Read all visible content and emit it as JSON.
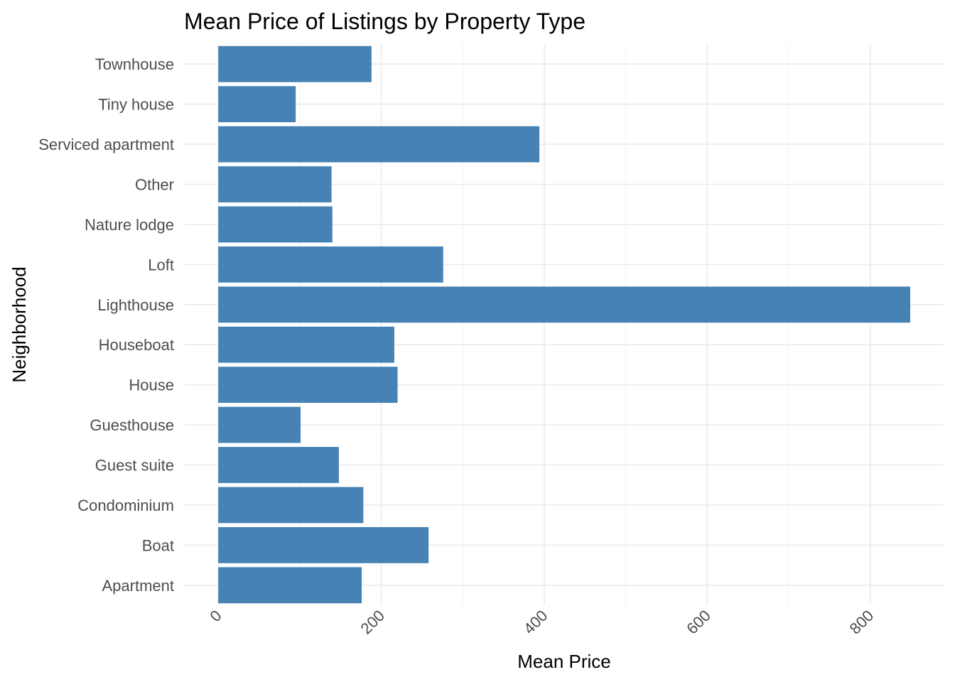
{
  "chart_data": {
    "type": "bar",
    "orientation": "horizontal",
    "title": "Mean Price of Listings by Property Type",
    "xlabel": "Mean Price",
    "ylabel": "Neighborhood",
    "categories": [
      "Apartment",
      "Boat",
      "Condominium",
      "Guest suite",
      "Guesthouse",
      "House",
      "Houseboat",
      "Lighthouse",
      "Loft",
      "Nature lodge",
      "Other",
      "Serviced apartment",
      "Tiny house",
      "Townhouse"
    ],
    "values": [
      176,
      258,
      178,
      148,
      101,
      220,
      216,
      849,
      276,
      140,
      139,
      394,
      95,
      188
    ],
    "xlim": [
      -42,
      890
    ],
    "xticks": [
      0,
      200,
      400,
      600,
      800
    ],
    "xtick_labels": [
      "0",
      "200",
      "400",
      "600",
      "800"
    ],
    "grid": true,
    "bar_color": "#4682B4"
  }
}
